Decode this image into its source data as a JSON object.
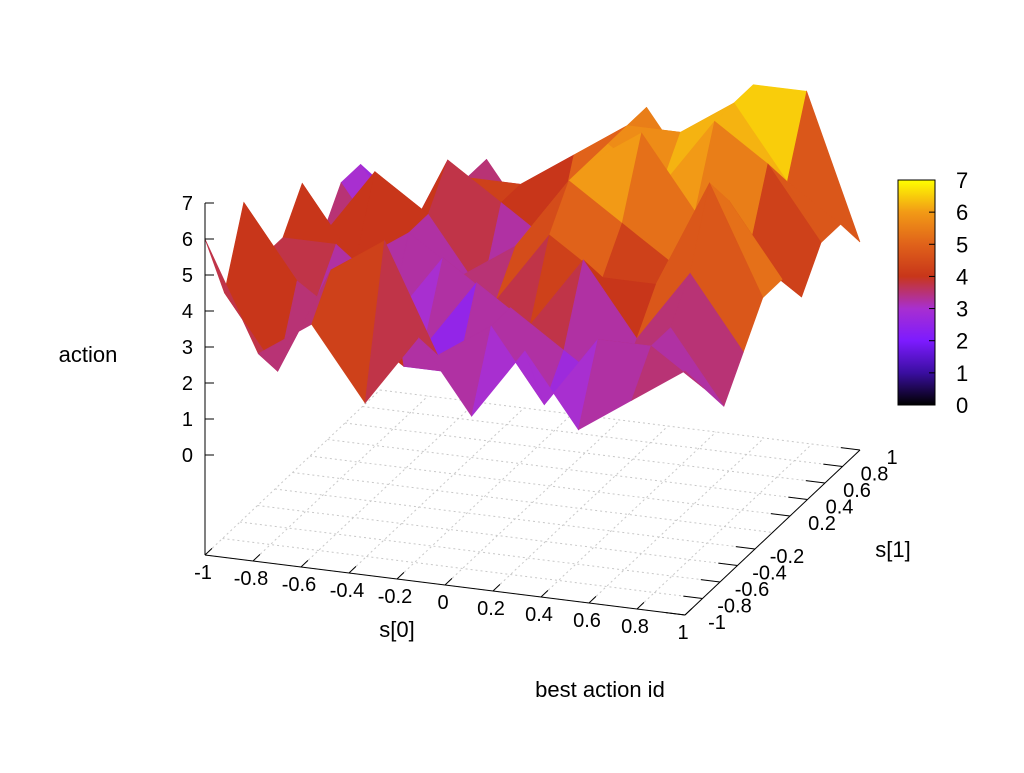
{
  "chart_data": {
    "type": "surface3d",
    "title": "",
    "xlabel": "s[0]",
    "ylabel": "s[1]",
    "zlabel": "action",
    "footer_label": "best action id",
    "xlim": [
      -1,
      1
    ],
    "ylim": [
      -1,
      1
    ],
    "zlim": [
      0,
      7
    ],
    "x_ticks": [
      "-1",
      "-0.8",
      "-0.6",
      "-0.4",
      "-0.2",
      "0",
      "0.2",
      "0.4",
      "0.6",
      "0.8",
      "1"
    ],
    "y_ticks": [
      "-1",
      "-0.8",
      "-0.6",
      "-0.4",
      "-0.2",
      "0.2",
      "0.4",
      "0.6",
      "0.8",
      "1"
    ],
    "z_ticks": [
      "0",
      "1",
      "2",
      "3",
      "4",
      "5",
      "6",
      "7"
    ],
    "colorbar": {
      "ticks": [
        "0",
        "1",
        "2",
        "3",
        "4",
        "5",
        "6",
        "7"
      ],
      "range": [
        0,
        7
      ],
      "palette": [
        "#000000",
        "#3a0ea0",
        "#7d1bff",
        "#a82fd0",
        "#c8361a",
        "#e0621a",
        "#f29a16",
        "#ffff00"
      ]
    },
    "grid": true,
    "x": [
      -1,
      -0.778,
      -0.556,
      -0.333,
      -0.111,
      0.111,
      0.333,
      0.556,
      0.778,
      1
    ],
    "y": [
      -1,
      -0.778,
      -0.556,
      -0.333,
      -0.111,
      0.111,
      0.333,
      0.556,
      0.778,
      1
    ],
    "z": [
      [
        6,
        3,
        4,
        2,
        4,
        2,
        4,
        2,
        3,
        4
      ],
      [
        4,
        2,
        5,
        6,
        3,
        4,
        2,
        4,
        4,
        3
      ],
      [
        6,
        4,
        3,
        2,
        2,
        4,
        3,
        2,
        4,
        2
      ],
      [
        4,
        3,
        4,
        2,
        4,
        3,
        5,
        3,
        5,
        3
      ],
      [
        4,
        4,
        2,
        4,
        3,
        5,
        4,
        4,
        7,
        4
      ],
      [
        5,
        3,
        4,
        3,
        4,
        6,
        5,
        4,
        6,
        4
      ],
      [
        3,
        5,
        4,
        2,
        4,
        6,
        7,
        5,
        4,
        3
      ],
      [
        4,
        2,
        5,
        4,
        3,
        6,
        5,
        7,
        6,
        4
      ],
      [
        4,
        2,
        4,
        4,
        5,
        6,
        6,
        7,
        5,
        4
      ],
      [
        3,
        2,
        4,
        2,
        4,
        6,
        4,
        7,
        7,
        3
      ]
    ]
  }
}
